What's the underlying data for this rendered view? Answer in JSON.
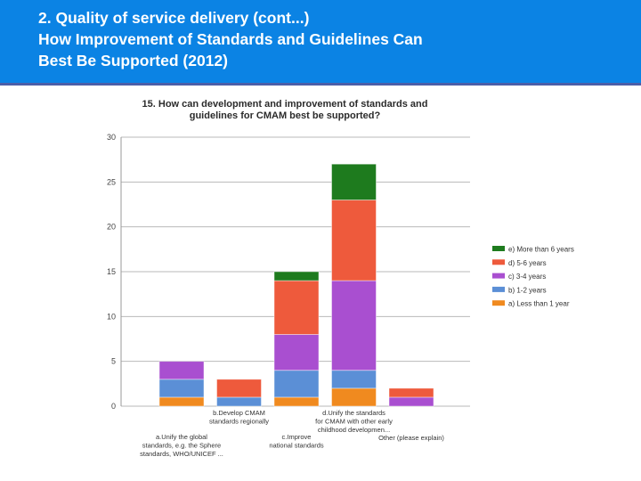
{
  "slide": {
    "title": "2. Quality of service delivery (cont...)\nHow Improvement of Standards and Guidelines Can\nBest Be Supported (2012)"
  },
  "chart_data": {
    "type": "bar",
    "stacked": true,
    "title": [
      "15. How can development and improvement of standards and",
      "guidelines for CMAM best be supported?"
    ],
    "categories": [
      "a.Unify the global standards, e.g. the Sphere standards, WHO/UNICEF ...",
      "b.Develop CMAM standards regionally",
      "c.Improve national standards",
      "d.Unify the standards for CMAM with other early childhood developmen...",
      "Other (please explain)"
    ],
    "category_label_lines": [
      [
        "a.Unify the global",
        "standards, e.g. the Sphere",
        "standards, WHO/UNICEF ..."
      ],
      [
        "b.Develop CMAM",
        "standards regionally"
      ],
      [
        "c.Improve",
        "national standards"
      ],
      [
        "d.Unify the standards",
        "for CMAM with other early",
        "childhood developmen..."
      ],
      [
        "Other (please explain)"
      ]
    ],
    "series": [
      {
        "name": "a) Less than 1 year",
        "color": "#f08a1f",
        "values": [
          1,
          0,
          1,
          2,
          0
        ]
      },
      {
        "name": "b) 1-2 years",
        "color": "#5b8fd6",
        "values": [
          2,
          1,
          3,
          2,
          0
        ]
      },
      {
        "name": "c) 3-4 years",
        "color": "#a94fd0",
        "values": [
          2,
          0,
          4,
          10,
          1
        ]
      },
      {
        "name": "d) 5-6 years",
        "color": "#ee5a3c",
        "values": [
          0,
          2,
          6,
          9,
          1
        ]
      },
      {
        "name": "e) More than 6 years",
        "color": "#1e7b1e",
        "values": [
          0,
          0,
          1,
          4,
          0
        ]
      }
    ],
    "legend_order": [
      "e) More than 6 years",
      "d) 5-6 years",
      "c) 3-4 years",
      "b) 1-2 years",
      "a) Less than 1 year"
    ],
    "ylim": [
      0,
      30
    ],
    "yticks": [
      0,
      5,
      10,
      15,
      20,
      25,
      30
    ],
    "xlabel": "",
    "ylabel": "",
    "grid": true,
    "legend_position": "right"
  }
}
